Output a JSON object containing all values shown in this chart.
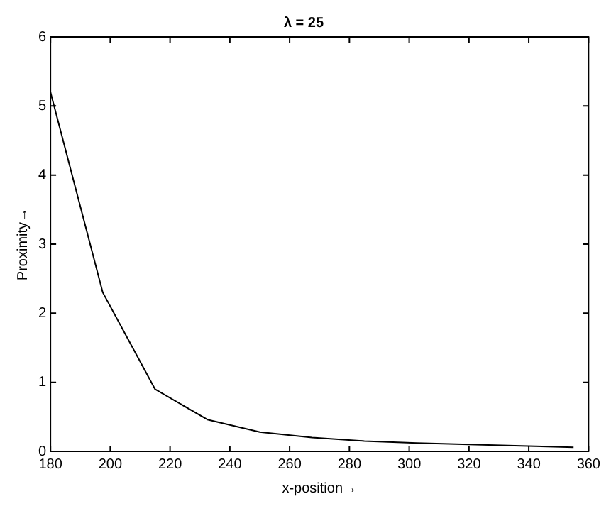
{
  "chart_data": {
    "type": "line",
    "title": "λ = 25",
    "xlabel": "x-position→",
    "ylabel": "Proximity→",
    "x": [
      180,
      197.5,
      215,
      232.5,
      250,
      267.5,
      285,
      302.5,
      320,
      337.5,
      355
    ],
    "series": [
      {
        "color": "#000000",
        "values": [
          5.2,
          2.3,
          0.9,
          0.46,
          0.28,
          0.2,
          0.15,
          0.12,
          0.1,
          0.08,
          0.06
        ]
      }
    ],
    "xlim": [
      180,
      360
    ],
    "xticks": [
      180,
      200,
      220,
      240,
      260,
      280,
      300,
      320,
      340,
      360
    ],
    "ylim": [
      0,
      6
    ],
    "yticks": [
      0,
      1,
      2,
      3,
      4,
      5,
      6
    ],
    "grid": false,
    "legend": false,
    "marker": "none",
    "line_style": "solid"
  }
}
